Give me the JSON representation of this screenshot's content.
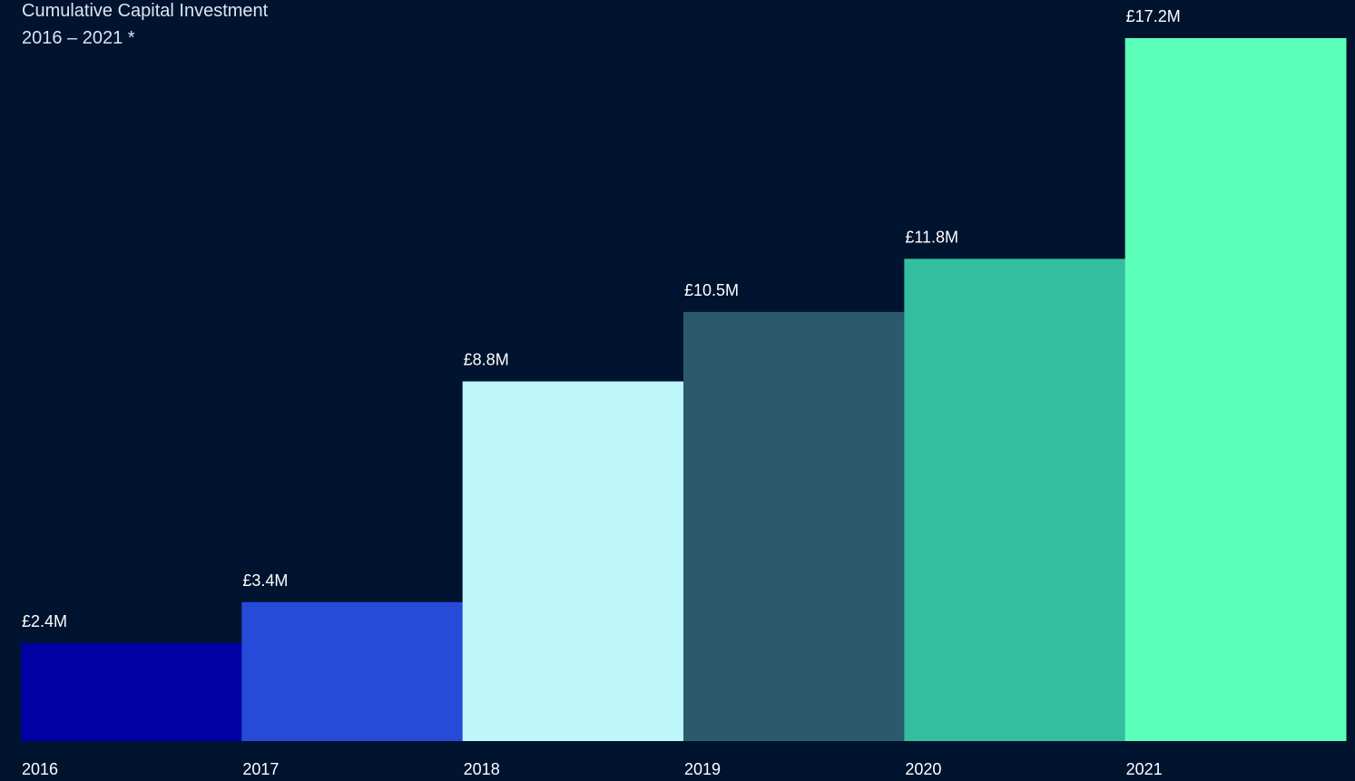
{
  "chart_data": {
    "type": "bar",
    "title": "Cumulative Capital Investment",
    "subtitle": "2016 – 2021 *",
    "xlabel": "",
    "ylabel": "",
    "categories": [
      "2016",
      "2017",
      "2018",
      "2019",
      "2020",
      "2021"
    ],
    "values": [
      2.4,
      3.4,
      8.8,
      10.5,
      11.8,
      17.2
    ],
    "value_labels": [
      "£2.4M",
      "£3.4M",
      "£8.8M",
      "£10.5M",
      "£11.8M",
      "£17.2M"
    ],
    "unit": "£M",
    "ylim": [
      0,
      17.2
    ],
    "grid": false,
    "legend": "none",
    "colors": [
      "#0000a3",
      "#264bd9",
      "#bdf7fc",
      "#2a5a6b",
      "#33bf9f",
      "#5cffba"
    ]
  },
  "colors": {
    "background": "#00132f",
    "text": "#ffffff"
  }
}
